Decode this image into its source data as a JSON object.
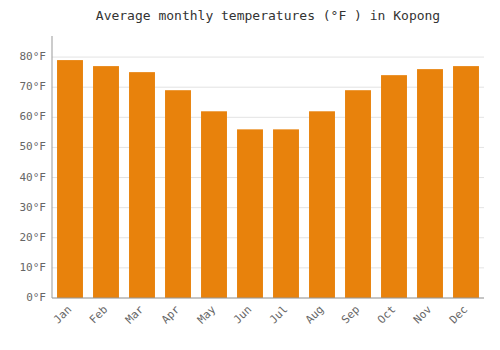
{
  "chart_data": {
    "type": "bar",
    "title": "Average monthly temperatures (°F ) in Kopong",
    "categories": [
      "Jan",
      "Feb",
      "Mar",
      "Apr",
      "May",
      "Jun",
      "Jul",
      "Aug",
      "Sep",
      "Oct",
      "Nov",
      "Dec"
    ],
    "values": [
      79,
      77,
      75,
      69,
      62,
      56,
      56,
      62,
      69,
      74,
      76,
      77
    ],
    "color": "#E8820C",
    "ylim": [
      0,
      87
    ],
    "yticks": [
      {
        "value": 0,
        "label": "0°F"
      },
      {
        "value": 10,
        "label": "10°F"
      },
      {
        "value": 20,
        "label": "20°F"
      },
      {
        "value": 30,
        "label": "30°F"
      },
      {
        "value": 40,
        "label": "40°F"
      },
      {
        "value": 50,
        "label": "50°F"
      },
      {
        "value": 60,
        "label": "60°F"
      },
      {
        "value": 70,
        "label": "70°F"
      },
      {
        "value": 80,
        "label": "80°F"
      }
    ],
    "grid": true
  }
}
